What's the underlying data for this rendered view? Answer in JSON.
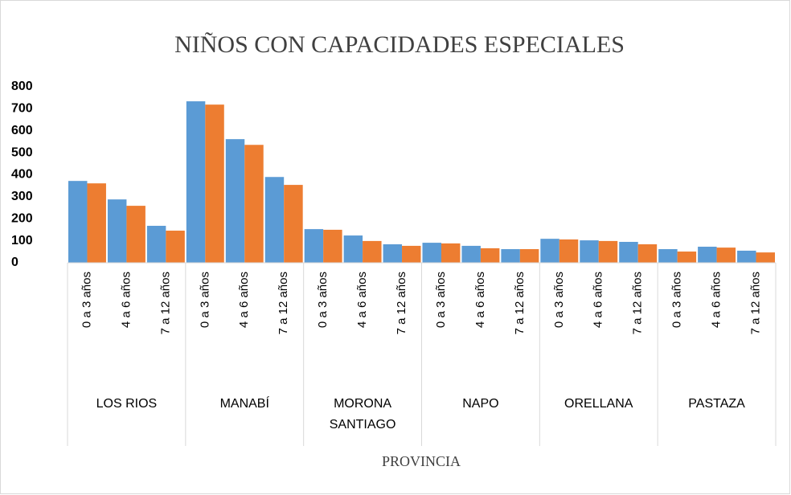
{
  "chart_data": {
    "type": "bar",
    "title": "NIÑOS CON CAPACIDADES ESPECIALES",
    "x_label": "PROVINCIA",
    "groups": [
      "LOS RIOS",
      "MANABÍ",
      "MORONA SANTIAGO",
      "NAPO",
      "ORELLANA",
      "PASTAZA"
    ],
    "categories": [
      "0 a 3 años",
      "4 a 6 años",
      "7 a 12 años",
      "0 a 3 años",
      "4 a 6 años",
      "7 a 12 años",
      "0 a 3 años",
      "4 a 6 años",
      "7 a 12 años",
      "0 a 3 años",
      "4 a 6 años",
      "7 a 12 años",
      "0 a 3 años",
      "4 a 6 años",
      "7 a 12 años",
      "0 a 3 años",
      "4 a 6 años",
      "7 a 12 años"
    ],
    "series": [
      {
        "color": "#5b9bd5",
        "values": [
          372,
          288,
          168,
          734,
          562,
          390,
          153,
          124,
          84,
          91,
          77,
          62,
          109,
          102,
          95,
          62,
          73,
          55
        ]
      },
      {
        "color": "#ed7d31",
        "values": [
          361,
          259,
          146,
          719,
          536,
          354,
          150,
          99,
          77,
          88,
          66,
          62,
          106,
          99,
          84,
          51,
          69,
          47
        ]
      }
    ],
    "ylim": [
      0,
      800
    ],
    "yticks": [
      0,
      100,
      200,
      300,
      400,
      500,
      600,
      700,
      800
    ],
    "grid": false
  }
}
